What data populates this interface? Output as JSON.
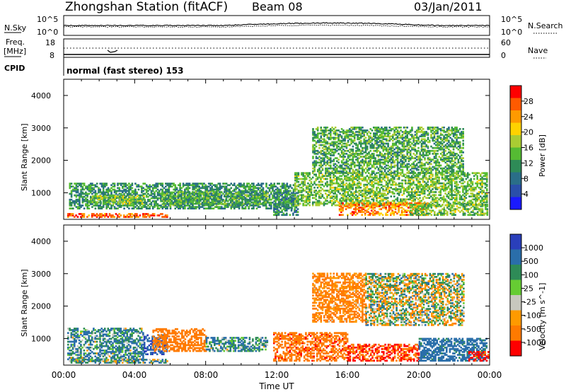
{
  "header": {
    "station_title": "Zhongshan Station (fitACF)",
    "beam": "Beam 08",
    "date": "03/Jan/2011"
  },
  "noise_panel": {
    "left_label": "N.Sky",
    "left_ticks": [
      "10^5",
      "10^0"
    ],
    "right_ticks": [
      "10^5",
      "10^0"
    ],
    "right_label": "N.Search"
  },
  "freq_panel": {
    "left_label_top": "Freq.",
    "left_label_bottom": "[MHz]",
    "left_ticks": [
      "18",
      "8"
    ],
    "right_ticks": [
      "60",
      "0"
    ],
    "right_label": "Nave"
  },
  "cpid_panel": {
    "label": "CPID",
    "text": "normal (fast stereo) 153"
  },
  "range_axis": {
    "label": "Slant Range [km]",
    "ticks": [
      "4000",
      "3000",
      "2000",
      "1000"
    ]
  },
  "time_axis": {
    "label": "Time UT",
    "ticks": [
      "00:00",
      "04:00",
      "08:00",
      "12:00",
      "16:00",
      "20:00",
      "00:00"
    ]
  },
  "power_scale": {
    "title": "Power [dB]",
    "ticks": [
      "28",
      "24",
      "20",
      "16",
      "12",
      "8",
      "4"
    ],
    "colors": [
      "#ff0000",
      "#ff5a00",
      "#ff9a00",
      "#ffd200",
      "#aacc33",
      "#55bb33",
      "#2e8b57",
      "#2a6e88",
      "#2a4faa",
      "#1a1aff"
    ]
  },
  "velocity_scale": {
    "title": "Velocity [m s^-1]",
    "ticks": [
      "1000",
      "500",
      "100",
      "25",
      "-25",
      "-100",
      "-500",
      "-1000"
    ],
    "colors": [
      "#2a3fbb",
      "#2a6eaa",
      "#2e8b57",
      "#66cc33",
      "#c8c8be",
      "#ff9a00",
      "#ff7a00",
      "#ff0000"
    ]
  },
  "chart_data": {
    "type": "heatmap",
    "title": "Zhongshan Station (fitACF)",
    "x_range_hours": [
      0,
      24
    ],
    "y_range_km": [
      180,
      4500
    ],
    "xlabel": "Time UT",
    "ylabel": "Slant Range [km]",
    "power_range_db": [
      0,
      30
    ],
    "velocity_range": [
      -1000,
      1000
    ],
    "power_regions": [
      {
        "t0": 0.2,
        "t1": 5.8,
        "r0": 240,
        "r1": 340,
        "level": 26
      },
      {
        "t0": 0.3,
        "t1": 13.0,
        "r0": 500,
        "r1": 1300,
        "level": 10
      },
      {
        "t0": 1.5,
        "t1": 4.5,
        "r0": 650,
        "r1": 900,
        "level": 15
      },
      {
        "t0": 5.5,
        "t1": 11.5,
        "r0": 600,
        "r1": 1050,
        "level": 12
      },
      {
        "t0": 11.8,
        "t1": 13.2,
        "r0": 300,
        "r1": 1000,
        "level": 9
      },
      {
        "t0": 13.0,
        "t1": 23.8,
        "r0": 600,
        "r1": 1600,
        "level": 14
      },
      {
        "t0": 14.0,
        "t1": 22.5,
        "r0": 1600,
        "r1": 3000,
        "level": 12
      },
      {
        "t0": 15.5,
        "t1": 20.5,
        "r0": 300,
        "r1": 700,
        "level": 24
      },
      {
        "t0": 19.5,
        "t1": 23.9,
        "r0": 300,
        "r1": 650,
        "level": 14
      }
    ],
    "velocity_regions": [
      {
        "t0": 0.2,
        "t1": 4.5,
        "r0": 300,
        "r1": 1300,
        "level": 100
      },
      {
        "t0": 0.3,
        "t1": 5.8,
        "r0": 240,
        "r1": 340,
        "level": 50
      },
      {
        "t0": 4.5,
        "t1": 5.8,
        "r0": 500,
        "r1": 1100,
        "level": 500
      },
      {
        "t0": 5.0,
        "t1": 8.0,
        "r0": 600,
        "r1": 1300,
        "level": -300
      },
      {
        "t0": 8.0,
        "t1": 11.5,
        "r0": 600,
        "r1": 1050,
        "level": 100
      },
      {
        "t0": 11.8,
        "t1": 16.0,
        "r0": 300,
        "r1": 1200,
        "level": -400
      },
      {
        "t0": 14.0,
        "t1": 17.0,
        "r0": 1500,
        "r1": 3000,
        "level": -150
      },
      {
        "t0": 16.0,
        "t1": 20.0,
        "r0": 300,
        "r1": 800,
        "level": -500
      },
      {
        "t0": 17.0,
        "t1": 22.5,
        "r0": 1400,
        "r1": 3000,
        "level": 0
      },
      {
        "t0": 20.0,
        "t1": 23.8,
        "r0": 300,
        "r1": 1000,
        "level": 200
      },
      {
        "t0": 22.8,
        "t1": 23.9,
        "r0": 300,
        "r1": 600,
        "level": -600
      }
    ]
  }
}
